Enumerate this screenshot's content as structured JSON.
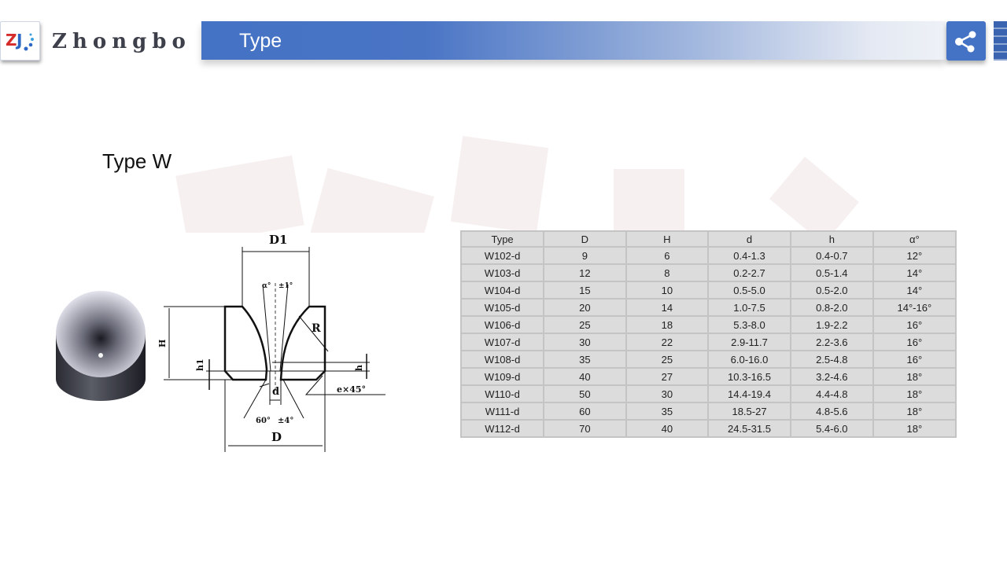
{
  "brand": {
    "name": "Zhongbo",
    "logo_letters": "ZJ"
  },
  "header": {
    "title": "Type",
    "share_icon": "share-icon",
    "menu_icon": "menu-icon",
    "accent_color": "#4472c4"
  },
  "section": {
    "title": "Type W"
  },
  "diagram": {
    "labels": {
      "D1": "D1",
      "alpha": "α°",
      "alpha_tol": "±1°",
      "R": "R",
      "H": "H",
      "h1": "h1",
      "h": "h",
      "d": "d",
      "chamfer": "e×45°",
      "angle": "60°",
      "angle_tol": "±4°",
      "D": "D"
    }
  },
  "table": {
    "headers": [
      "Type",
      "D",
      "H",
      "d",
      "h",
      "α°"
    ],
    "rows": [
      [
        "W102-d",
        "9",
        "6",
        "0.4-1.3",
        "0.4-0.7",
        "12°"
      ],
      [
        "W103-d",
        "12",
        "8",
        "0.2-2.7",
        "0.5-1.4",
        "14°"
      ],
      [
        "W104-d",
        "15",
        "10",
        "0.5-5.0",
        "0.5-2.0",
        "14°"
      ],
      [
        "W105-d",
        "20",
        "14",
        "1.0-7.5",
        "0.8-2.0",
        "14°-16°"
      ],
      [
        "W106-d",
        "25",
        "18",
        "5.3-8.0",
        "1.9-2.2",
        "16°"
      ],
      [
        "W107-d",
        "30",
        "22",
        "2.9-11.7",
        "2.2-3.6",
        "16°"
      ],
      [
        "W108-d",
        "35",
        "25",
        "6.0-16.0",
        "2.5-4.8",
        "16°"
      ],
      [
        "W109-d",
        "40",
        "27",
        "10.3-16.5",
        "3.2-4.6",
        "18°"
      ],
      [
        "W110-d",
        "50",
        "30",
        "14.4-19.4",
        "4.4-4.8",
        "18°"
      ],
      [
        "W111-d",
        "60",
        "35",
        "18.5-27",
        "4.8-5.6",
        "18°"
      ],
      [
        "W112-d",
        "70",
        "40",
        "24.5-31.5",
        "5.4-6.0",
        "18°"
      ]
    ]
  }
}
